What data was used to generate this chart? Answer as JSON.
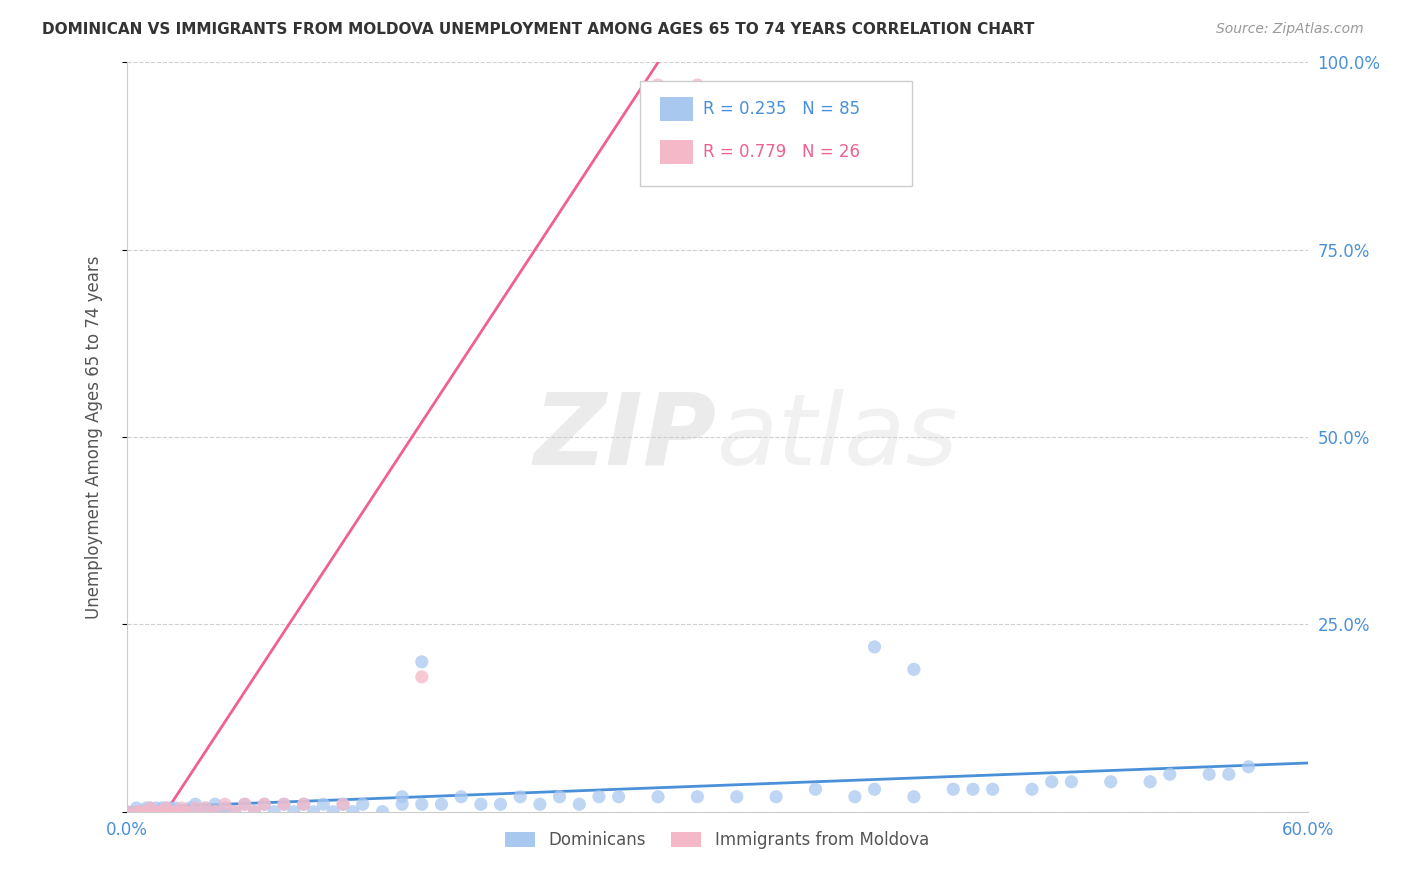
{
  "title": "DOMINICAN VS IMMIGRANTS FROM MOLDOVA UNEMPLOYMENT AMONG AGES 65 TO 74 YEARS CORRELATION CHART",
  "source": "Source: ZipAtlas.com",
  "ylabel": "Unemployment Among Ages 65 to 74 years",
  "legend1_label": "Dominicans",
  "legend2_label": "Immigrants from Moldova",
  "R1": 0.235,
  "N1": 85,
  "R2": 0.779,
  "N2": 26,
  "color1": "#a8c8f0",
  "color2": "#f5b8c8",
  "line1_color": "#4a90d9",
  "line2_color": "#f06090",
  "watermark_zip": "ZIP",
  "watermark_atlas": "atlas",
  "xlim": [
    0.0,
    0.6
  ],
  "ylim": [
    0.0,
    1.0
  ],
  "yticks": [
    0.0,
    0.25,
    0.5,
    0.75,
    1.0
  ],
  "ytick_labels_right": [
    "",
    "25.0%",
    "50.0%",
    "75.0%",
    "100.0%"
  ],
  "xticks": [
    0.0,
    0.1,
    0.2,
    0.3,
    0.4,
    0.5,
    0.6
  ],
  "xtick_labels": [
    "0.0%",
    "",
    "",
    "",
    "",
    "",
    "60.0%"
  ],
  "background_color": "#ffffff",
  "grid_color": "#d0d0d0",
  "dominican_x": [
    0.0,
    0.005,
    0.005,
    0.008,
    0.01,
    0.01,
    0.012,
    0.012,
    0.013,
    0.015,
    0.015,
    0.016,
    0.018,
    0.018,
    0.02,
    0.02,
    0.022,
    0.022,
    0.024,
    0.025,
    0.025,
    0.028,
    0.03,
    0.032,
    0.034,
    0.035,
    0.038,
    0.04,
    0.04,
    0.042,
    0.045,
    0.045,
    0.048,
    0.05,
    0.055,
    0.06,
    0.065,
    0.07,
    0.075,
    0.08,
    0.085,
    0.09,
    0.095,
    0.1,
    0.105,
    0.11,
    0.115,
    0.12,
    0.13,
    0.14,
    0.14,
    0.15,
    0.16,
    0.17,
    0.18,
    0.19,
    0.2,
    0.21,
    0.22,
    0.23,
    0.24,
    0.25,
    0.27,
    0.29,
    0.31,
    0.33,
    0.35,
    0.37,
    0.38,
    0.4,
    0.42,
    0.43,
    0.44,
    0.46,
    0.47,
    0.48,
    0.5,
    0.52,
    0.53,
    0.55,
    0.56,
    0.57,
    0.38,
    0.4,
    0.15
  ],
  "dominican_y": [
    0.0,
    0.0,
    0.005,
    0.0,
    0.0,
    0.005,
    0.0,
    0.005,
    0.0,
    0.0,
    0.005,
    0.0,
    0.0,
    0.005,
    0.0,
    0.005,
    0.0,
    0.005,
    0.0,
    0.0,
    0.005,
    0.0,
    0.0,
    0.005,
    0.0,
    0.01,
    0.0,
    0.0,
    0.005,
    0.0,
    0.0,
    0.01,
    0.0,
    0.005,
    0.0,
    0.01,
    0.0,
    0.01,
    0.0,
    0.01,
    0.0,
    0.01,
    0.0,
    0.01,
    0.0,
    0.01,
    0.0,
    0.01,
    0.0,
    0.01,
    0.02,
    0.01,
    0.01,
    0.02,
    0.01,
    0.01,
    0.02,
    0.01,
    0.02,
    0.01,
    0.02,
    0.02,
    0.02,
    0.02,
    0.02,
    0.02,
    0.03,
    0.02,
    0.03,
    0.02,
    0.03,
    0.03,
    0.03,
    0.03,
    0.04,
    0.04,
    0.04,
    0.04,
    0.05,
    0.05,
    0.05,
    0.06,
    0.22,
    0.19,
    0.2
  ],
  "moldova_x": [
    0.0,
    0.005,
    0.007,
    0.01,
    0.012,
    0.015,
    0.018,
    0.02,
    0.022,
    0.025,
    0.028,
    0.03,
    0.035,
    0.04,
    0.045,
    0.05,
    0.055,
    0.06,
    0.065,
    0.07,
    0.08,
    0.09,
    0.11,
    0.15,
    0.27,
    0.29
  ],
  "moldova_y": [
    0.0,
    0.0,
    0.0,
    0.0,
    0.005,
    0.0,
    0.0,
    0.005,
    0.0,
    0.0,
    0.005,
    0.0,
    0.005,
    0.005,
    0.0,
    0.01,
    0.0,
    0.01,
    0.0,
    0.01,
    0.01,
    0.01,
    0.01,
    0.18,
    0.97,
    0.97
  ],
  "moldova_line_x": [
    0.02,
    0.27
  ],
  "moldova_line_y": [
    0.0,
    1.0
  ],
  "dominican_line_x": [
    0.0,
    0.6
  ],
  "dominican_line_y": [
    0.005,
    0.065
  ]
}
